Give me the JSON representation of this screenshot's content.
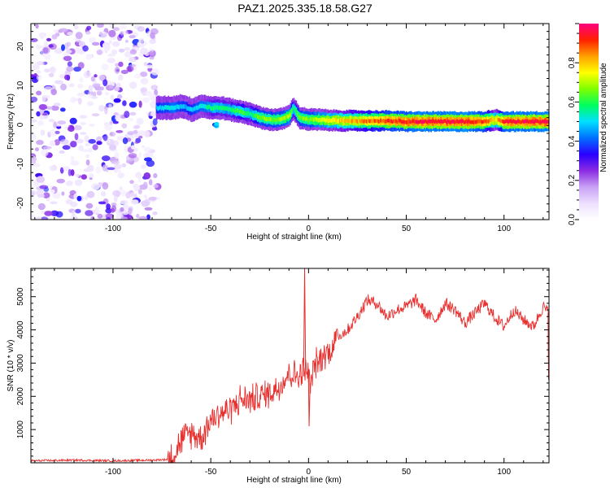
{
  "title": "PAZ1.2025.335.18.58.G27",
  "colors": {
    "snr_line": "#e8302f",
    "axis": "#000000",
    "background": "#ffffff"
  },
  "chart_data": [
    {
      "type": "heatmap",
      "name": "spectrogram",
      "xlabel": "Height of straight line (km)",
      "ylabel": "Frequency (Hz)",
      "xlim": [
        -142,
        123
      ],
      "ylim": [
        -25,
        25
      ],
      "xticks": [
        -100,
        -50,
        0,
        50,
        100
      ],
      "yticks": [
        -20,
        -10,
        0,
        10,
        20
      ],
      "colorbar": {
        "label": "Normalized spectral amplitude",
        "range": [
          0,
          1
        ],
        "ticks": [
          0.0,
          0.2,
          0.4,
          0.6,
          0.8
        ],
        "tick_labels": [
          "0.0",
          "0.2",
          "0.4",
          "0.6",
          "0.8"
        ],
        "colormap": [
          "#ffffff",
          "#ede0ff",
          "#c8a0f5",
          "#8a2be2",
          "#2a00ff",
          "#0070ff",
          "#00e0ff",
          "#00ff60",
          "#80ff00",
          "#ffff00",
          "#ffa000",
          "#ff2000",
          "#ff0080"
        ]
      },
      "noise_region_x": [
        -142,
        -77
      ],
      "ridge": {
        "x": [
          -78,
          -70,
          -65,
          -60,
          -55,
          -50,
          -45,
          -40,
          -35,
          -30,
          -25,
          -20,
          -15,
          -10,
          -8,
          -5,
          0,
          5,
          10,
          20,
          30,
          40,
          50,
          60,
          70,
          80,
          90,
          95,
          100,
          110,
          123
        ],
        "freq": [
          3.5,
          3.5,
          4.0,
          3.0,
          4.0,
          3.5,
          3.5,
          3.0,
          2.5,
          2.0,
          1.0,
          0.5,
          0.5,
          1.5,
          3.5,
          1.0,
          0.5,
          0.5,
          0.3,
          0.2,
          0.2,
          0.2,
          0.0,
          0.0,
          0.0,
          0.0,
          0.0,
          0.5,
          0.0,
          0.0,
          0.0
        ],
        "amplitude": [
          0.5,
          0.55,
          0.5,
          0.5,
          0.55,
          0.6,
          0.6,
          0.6,
          0.65,
          0.6,
          0.7,
          0.7,
          0.7,
          0.75,
          0.6,
          0.7,
          0.7,
          0.75,
          0.8,
          0.85,
          0.9,
          0.95,
          0.98,
          1.0,
          1.0,
          1.0,
          0.95,
          0.8,
          0.98,
          1.0,
          1.0
        ]
      }
    },
    {
      "type": "line",
      "name": "snr",
      "xlabel": "Height of straight line (km)",
      "ylabel": "SNR (10 * v/v)",
      "xlim": [
        -142,
        123
      ],
      "ylim": [
        0,
        5850
      ],
      "xticks": [
        -100,
        -50,
        0,
        50,
        100
      ],
      "yticks": [
        1000,
        2000,
        3000,
        4000,
        5000
      ],
      "series": [
        {
          "name": "SNR",
          "x": [
            -142,
            -120,
            -100,
            -80,
            -72,
            -68,
            -65,
            -60,
            -55,
            -50,
            -45,
            -40,
            -35,
            -30,
            -25,
            -20,
            -15,
            -10,
            -5,
            -2,
            0,
            1,
            3,
            5,
            8,
            10,
            15,
            20,
            25,
            30,
            35,
            40,
            45,
            50,
            55,
            60,
            65,
            70,
            75,
            80,
            85,
            90,
            95,
            100,
            105,
            110,
            115,
            120,
            123
          ],
          "y": [
            60,
            80,
            60,
            80,
            100,
            350,
            700,
            900,
            750,
            1300,
            1500,
            1600,
            1900,
            1900,
            2000,
            2100,
            2300,
            2700,
            2600,
            2800,
            2700,
            2200,
            3000,
            3000,
            3300,
            3300,
            3800,
            4000,
            4400,
            4900,
            4800,
            4400,
            4600,
            4700,
            4900,
            4500,
            4300,
            4800,
            4600,
            4200,
            4500,
            4800,
            4400,
            4100,
            4600,
            4300,
            4100,
            4700,
            4500
          ],
          "color": "#e8302f"
        }
      ]
    }
  ]
}
